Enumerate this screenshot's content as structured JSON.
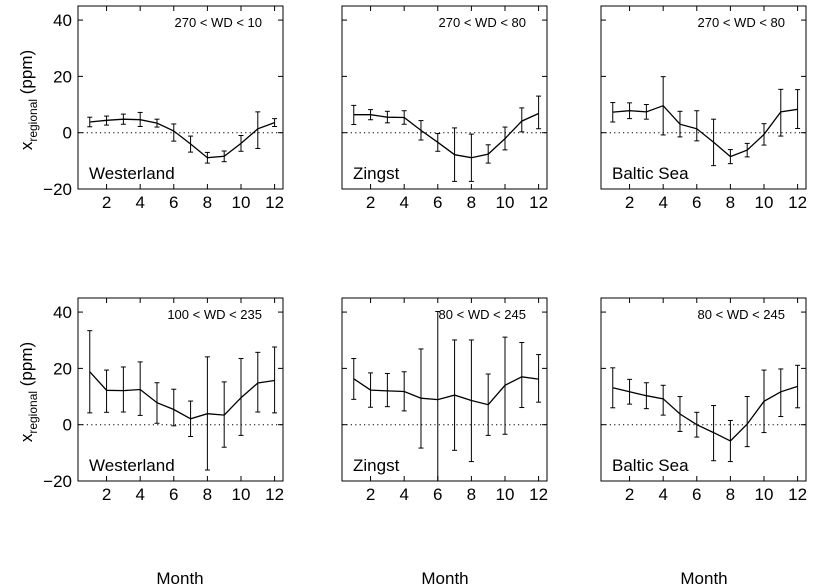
{
  "figure": {
    "ylabel_main": "x",
    "ylabel_sub": "regional",
    "ylabel_unit": " (ppm)",
    "xlabel": "Month"
  },
  "chart_data": [
    {
      "type": "line",
      "site": "Westerland",
      "condition": "270 < WD < 10",
      "x": [
        1,
        2,
        3,
        4,
        5,
        6,
        7,
        8,
        9,
        10,
        11,
        12
      ],
      "y": [
        3.8,
        4.4,
        4.8,
        4.6,
        3.4,
        0.6,
        -4.0,
        -8.9,
        -8.4,
        -3.8,
        1.4,
        3.6
      ],
      "err_low": [
        1.7,
        1.7,
        1.8,
        2.4,
        1.4,
        3.6,
        2.9,
        1.9,
        1.9,
        2.8,
        7.0,
        1.4
      ],
      "err_high": [
        1.7,
        1.5,
        1.8,
        2.6,
        1.4,
        2.5,
        2.8,
        1.9,
        1.9,
        2.8,
        6.0,
        1.4
      ],
      "xlim": [
        0.3,
        12.5
      ],
      "ylim": [
        -20,
        45
      ],
      "xticks": [
        2,
        4,
        6,
        8,
        10,
        12
      ],
      "yticks": [
        -20,
        0,
        20,
        40
      ],
      "reference_line": 0
    },
    {
      "type": "line",
      "site": "Zingst",
      "condition": "270 < WD < 80",
      "x": [
        1,
        2,
        3,
        4,
        5,
        6,
        7,
        8,
        9,
        10,
        11,
        12
      ],
      "y": [
        6.4,
        6.4,
        5.5,
        5.4,
        0.8,
        -3.4,
        -7.8,
        -8.9,
        -7.6,
        -2.1,
        4.1,
        6.8
      ],
      "err_low": [
        3.5,
        1.8,
        2.0,
        2.4,
        3.4,
        3.2,
        9.5,
        8.4,
        3.2,
        4.0,
        3.8,
        5.4
      ],
      "err_high": [
        3.3,
        1.8,
        2.1,
        2.4,
        3.5,
        3.1,
        9.5,
        8.4,
        3.3,
        4.1,
        4.7,
        6.2
      ],
      "xlim": [
        0.3,
        12.5
      ],
      "ylim": [
        -20,
        45
      ],
      "xticks": [
        2,
        4,
        6,
        8,
        10,
        12
      ],
      "yticks": [
        -20,
        0,
        20,
        40
      ],
      "reference_line": 0
    },
    {
      "type": "line",
      "site": "Baltic Sea",
      "condition": "270 < WD < 80",
      "x": [
        1,
        2,
        3,
        4,
        5,
        6,
        7,
        8,
        9,
        10,
        11,
        12
      ],
      "y": [
        7.3,
        7.8,
        7.4,
        9.6,
        3.0,
        1.4,
        -3.4,
        -8.5,
        -6.2,
        -0.6,
        7.4,
        8.3
      ],
      "err_low": [
        3.5,
        2.8,
        2.6,
        10.4,
        4.5,
        4.3,
        8.3,
        2.5,
        2.4,
        3.8,
        8.6,
        6.8
      ],
      "err_high": [
        3.4,
        2.8,
        2.6,
        10.3,
        4.6,
        6.4,
        8.2,
        2.5,
        2.4,
        3.8,
        8.0,
        7.0
      ],
      "xlim": [
        0.3,
        12.5
      ],
      "ylim": [
        -20,
        45
      ],
      "xticks": [
        2,
        4,
        6,
        8,
        10,
        12
      ],
      "yticks": [
        -20,
        0,
        20,
        40
      ],
      "reference_line": 0
    },
    {
      "type": "line",
      "site": "Westerland",
      "condition": "100 < WD < 235",
      "x": [
        1,
        2,
        3,
        4,
        5,
        6,
        7,
        8,
        9,
        10,
        11,
        12
      ],
      "y": [
        18.8,
        12.2,
        12.1,
        12.5,
        7.8,
        5.4,
        2.1,
        3.9,
        3.4,
        9.6,
        14.8,
        15.7
      ],
      "err_low": [
        14.6,
        7.8,
        7.6,
        9.2,
        7.3,
        5.8,
        6.3,
        20.0,
        11.4,
        13.4,
        10.3,
        11.5
      ],
      "err_high": [
        14.6,
        7.2,
        8.4,
        9.8,
        7.1,
        7.2,
        6.3,
        20.2,
        11.8,
        13.9,
        10.9,
        11.9
      ],
      "xlim": [
        0.3,
        12.5
      ],
      "ylim": [
        -20,
        45
      ],
      "xticks": [
        2,
        4,
        6,
        8,
        10,
        12
      ],
      "yticks": [
        -20,
        0,
        20,
        40
      ],
      "reference_line": 0
    },
    {
      "type": "line",
      "site": "Zingst",
      "condition": "80 < WD < 245",
      "x": [
        1,
        2,
        3,
        4,
        5,
        6,
        7,
        8,
        9,
        10,
        11,
        12
      ],
      "y": [
        16.3,
        12.3,
        12.0,
        11.8,
        9.4,
        8.9,
        10.5,
        8.6,
        7.1,
        14.0,
        17.0,
        16.2
      ],
      "err_low": [
        7.3,
        6.1,
        5.6,
        6.9,
        17.7,
        29.0,
        19.6,
        21.7,
        10.9,
        17.4,
        10.9,
        8.2
      ],
      "err_high": [
        7.2,
        6.1,
        6.2,
        7.0,
        17.5,
        31.3,
        19.6,
        21.5,
        10.9,
        17.1,
        12.2,
        8.7
      ],
      "xlim": [
        0.3,
        12.5
      ],
      "ylim": [
        -20,
        45
      ],
      "xticks": [
        2,
        4,
        6,
        8,
        10,
        12
      ],
      "yticks": [
        -20,
        0,
        20,
        40
      ],
      "reference_line": 0
    },
    {
      "type": "line",
      "site": "Baltic Sea",
      "condition": "80 < WD < 245",
      "x": [
        1,
        2,
        3,
        4,
        5,
        6,
        7,
        8,
        9,
        10,
        11,
        12
      ],
      "y": [
        13.1,
        11.7,
        10.3,
        9.2,
        3.8,
        0.0,
        -2.8,
        -5.8,
        0.2,
        8.3,
        11.7,
        13.6
      ],
      "err_low": [
        7.1,
        4.4,
        4.6,
        5.8,
        6.2,
        4.4,
        10.0,
        7.3,
        8.0,
        11.1,
        8.8,
        7.6
      ],
      "err_high": [
        7.1,
        4.4,
        4.6,
        4.8,
        6.2,
        4.4,
        9.6,
        7.3,
        9.8,
        11.1,
        8.1,
        7.5
      ],
      "xlim": [
        0.3,
        12.5
      ],
      "ylim": [
        -20,
        45
      ],
      "xticks": [
        2,
        4,
        6,
        8,
        10,
        12
      ],
      "yticks": [
        -20,
        0,
        20,
        40
      ],
      "reference_line": 0
    }
  ]
}
